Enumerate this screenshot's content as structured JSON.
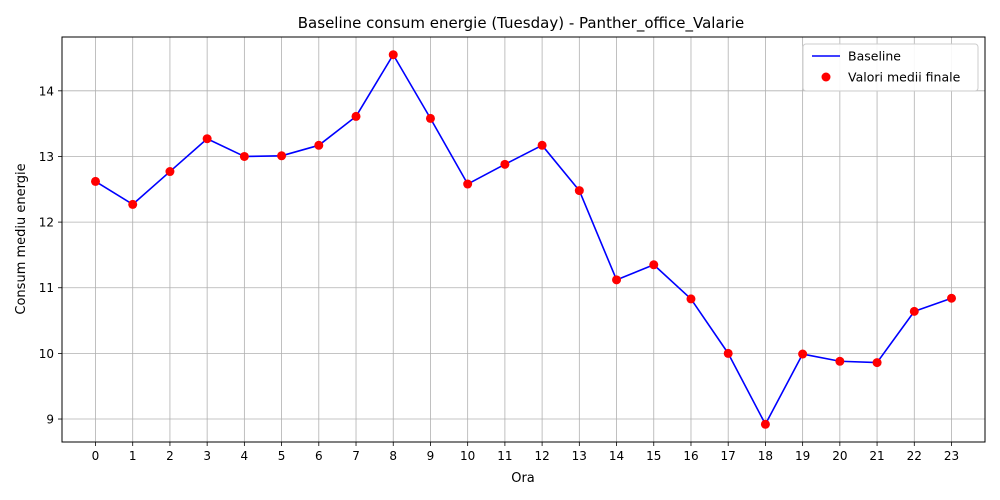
{
  "chart_data": {
    "type": "line",
    "title": "Baseline consum energie (Tuesday) - Panther_office_Valarie",
    "xlabel": "Ora",
    "ylabel": "Consum mediu energie",
    "x": [
      0,
      1,
      2,
      3,
      4,
      5,
      6,
      7,
      8,
      9,
      10,
      11,
      12,
      13,
      14,
      15,
      16,
      17,
      18,
      19,
      20,
      21,
      22,
      23
    ],
    "x_ticks": [
      "0",
      "1",
      "2",
      "3",
      "4",
      "5",
      "6",
      "7",
      "8",
      "9",
      "10",
      "11",
      "12",
      "13",
      "14",
      "15",
      "16",
      "17",
      "18",
      "19",
      "20",
      "21",
      "22",
      "23"
    ],
    "y_ticks": [
      "9",
      "10",
      "11",
      "12",
      "13",
      "14"
    ],
    "xlim": [
      -0.9,
      23.9
    ],
    "ylim": [
      8.65,
      14.82
    ],
    "grid": true,
    "legend_position": "top-right",
    "series": [
      {
        "name": "Baseline",
        "kind": "line",
        "color": "#0000ff",
        "values": [
          12.62,
          12.27,
          12.77,
          13.27,
          13.0,
          13.01,
          13.17,
          13.61,
          14.55,
          13.58,
          12.58,
          12.88,
          13.17,
          12.48,
          11.12,
          11.35,
          10.83,
          10.0,
          8.92,
          9.99,
          9.88,
          9.86,
          10.64,
          10.84
        ]
      },
      {
        "name": "Valori medii finale",
        "kind": "scatter",
        "color": "#ff0000",
        "values": [
          12.62,
          12.27,
          12.77,
          13.27,
          13.0,
          13.01,
          13.17,
          13.61,
          14.55,
          13.58,
          12.58,
          12.88,
          13.17,
          12.48,
          11.12,
          11.35,
          10.83,
          10.0,
          8.92,
          9.99,
          9.88,
          9.86,
          10.64,
          10.84
        ]
      }
    ]
  }
}
